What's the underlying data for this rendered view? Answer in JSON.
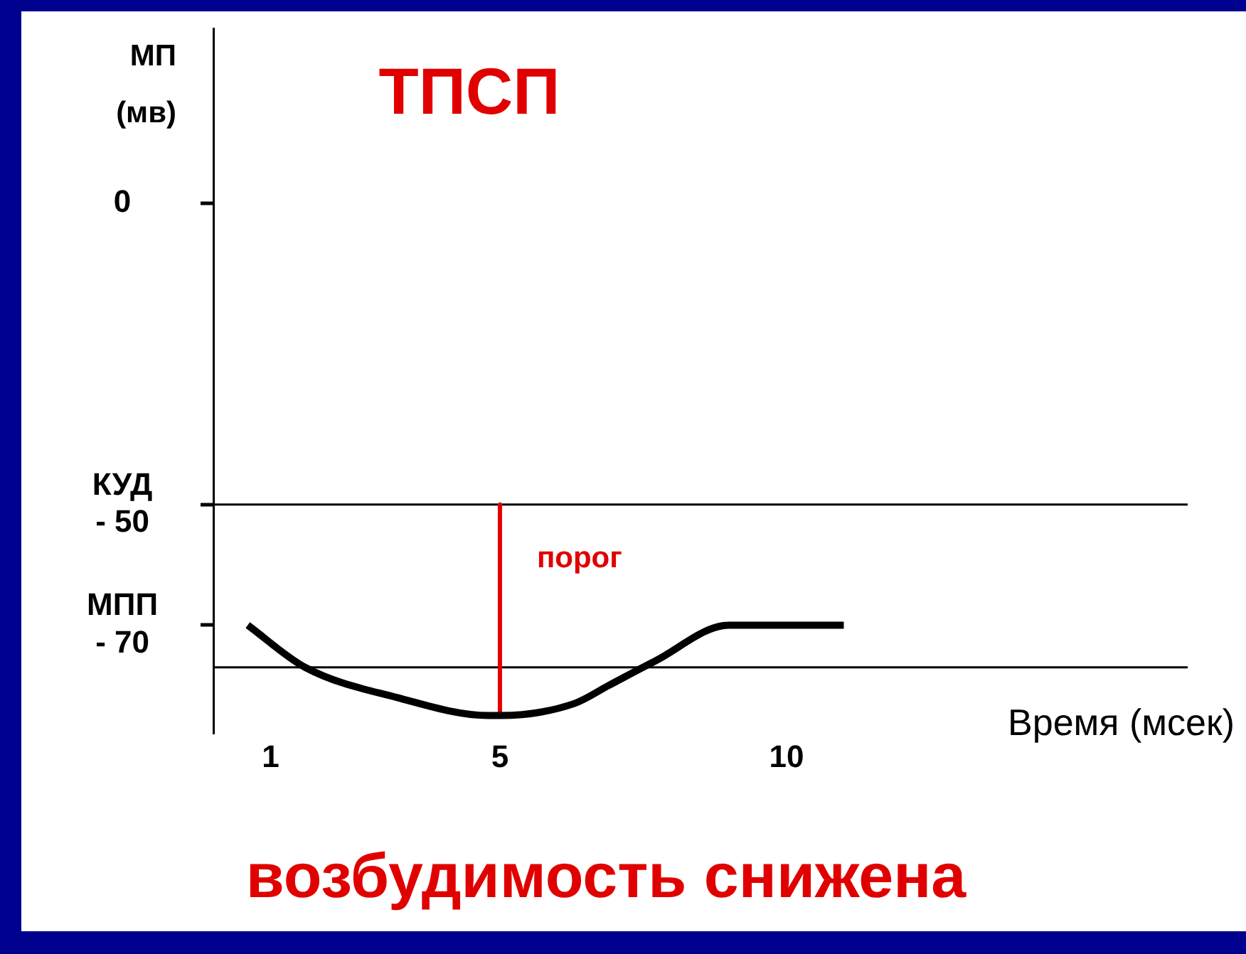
{
  "chart_data": {
    "type": "line",
    "title": "ТПСП",
    "ylabel": "МП (мв)",
    "xlabel": "Время (мсек)",
    "xlim": [
      0,
      17
    ],
    "xticks": [
      1,
      5,
      10
    ],
    "ylim": [
      -88,
      29
    ],
    "yticks": [
      0,
      {
        "value": -50,
        "label": "КУД\n- 50"
      },
      {
        "value": -70,
        "label": "МПП\n- 70"
      }
    ],
    "series": [
      {
        "color": "#000000",
        "x": [
          0.6,
          1.6,
          3.2,
          4.8,
          5,
          6.3,
          6.9,
          7.7,
          9,
          11
        ],
        "values": [
          -70,
          -77,
          -82,
          -85,
          -85,
          -83,
          -80,
          -76,
          -70,
          -70
        ]
      },
      {
        "color": "#e00000",
        "x": [
          5,
          5
        ],
        "values": [
          -50,
          -85
        ]
      }
    ],
    "ref_lines": [
      {
        "axis": "y",
        "value": -50,
        "color": "#000000"
      },
      {
        "axis": "y",
        "value": -77,
        "color": "#000000"
      }
    ],
    "annotations": [
      {
        "text": "порог",
        "x": 5,
        "y": -59
      },
      "возбудимость снижена"
    ],
    "grid": false,
    "legend": false,
    "marker": "none",
    "line_style": "solid"
  }
}
